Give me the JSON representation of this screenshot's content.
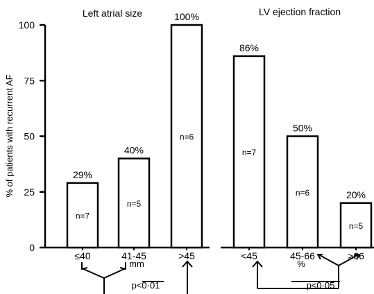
{
  "figure": {
    "ylabel": "% of patients with recurrent AF",
    "ylim": [
      0,
      100
    ],
    "yticks": [
      "0",
      "25",
      "50",
      "75",
      "100"
    ]
  },
  "chart_data": [
    {
      "type": "bar",
      "title": "Left atrial size",
      "categories": [
        "≤40",
        "41-45",
        ">45"
      ],
      "xunit": "mm",
      "values": [
        29,
        40,
        100
      ],
      "value_labels": [
        "29%",
        "40%",
        "100%"
      ],
      "n_labels": [
        "n=7",
        "n=5",
        "n=6"
      ],
      "ylabel": "% of patients with recurrent AF",
      "ylim": [
        0,
        100
      ],
      "significance": "p<0·01"
    },
    {
      "type": "bar",
      "title": "LV ejection fraction",
      "categories": [
        "<45",
        "45-66",
        ">66"
      ],
      "xunit": "%",
      "values": [
        86,
        50,
        20
      ],
      "value_labels": [
        "86%",
        "50%",
        "20%"
      ],
      "n_labels": [
        "n=7",
        "n=6",
        "n=5"
      ],
      "ylim": [
        0,
        100
      ],
      "significance": "p<0·05"
    }
  ]
}
